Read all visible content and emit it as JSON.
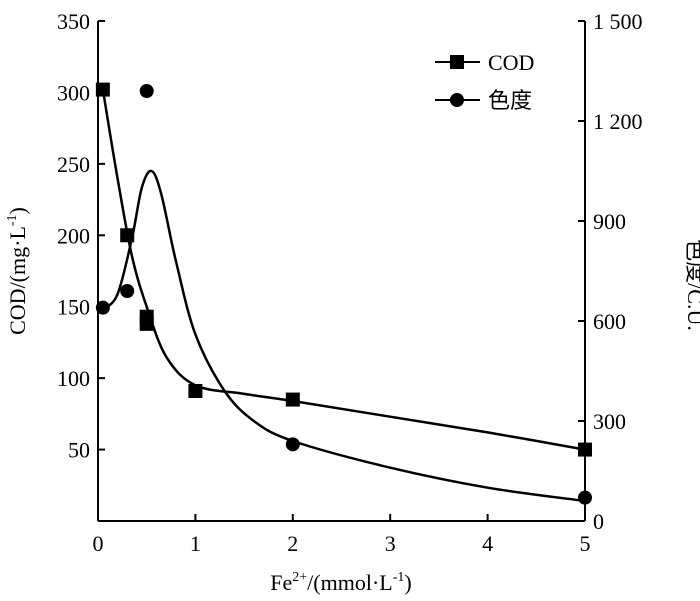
{
  "chart_data": {
    "type": "line",
    "title": "",
    "x_axis": {
      "ticks": [
        0,
        1,
        2,
        3,
        4,
        5
      ],
      "tick_labels": [
        "0",
        "1",
        "2",
        "3",
        "4",
        "5"
      ]
    },
    "y_axis_left": {
      "label": "COD/(mg·L",
      "label_sup": "-1",
      "label_close": ")",
      "range": [
        0,
        350
      ],
      "ticks": [
        50,
        100,
        150,
        200,
        250,
        300,
        350
      ],
      "tick_labels": [
        "50",
        "100",
        "150",
        "200",
        "250",
        "300",
        "350"
      ]
    },
    "y_axis_right": {
      "label": "色度/C.U.",
      "range": [
        0,
        1500
      ],
      "ticks": [
        0,
        300,
        600,
        900,
        1200,
        1500
      ],
      "tick_labels": [
        "0",
        "300",
        "600",
        "900",
        "1 200",
        "1 500"
      ]
    },
    "x_label": {
      "base": "Fe",
      "sup": "2+",
      "mid": "/(mmol·L",
      "sup2": "-1",
      "end": ")"
    },
    "legend_position": "top-right",
    "series": [
      {
        "name": "COD",
        "marker": "square",
        "axis": "left",
        "x": [
          0.05,
          0.3,
          0.5,
          0.5,
          1,
          2,
          5
        ],
        "y": [
          302,
          200,
          143,
          138,
          91,
          85,
          50
        ],
        "curve": [
          [
            0.05,
            302
          ],
          [
            0.2,
            240
          ],
          [
            0.35,
            185
          ],
          [
            0.5,
            150
          ],
          [
            0.7,
            115
          ],
          [
            1.0,
            95
          ],
          [
            1.5,
            89
          ],
          [
            2.0,
            84
          ],
          [
            3.0,
            73
          ],
          [
            4.0,
            62
          ],
          [
            5.0,
            50
          ]
        ]
      },
      {
        "name": "色度",
        "marker": "circle",
        "axis": "right",
        "x": [
          0.05,
          0.3,
          0.5,
          2,
          5
        ],
        "y": [
          640,
          690,
          1290,
          230,
          70
        ],
        "curve": [
          [
            0.05,
            635
          ],
          [
            0.2,
            680
          ],
          [
            0.35,
            850
          ],
          [
            0.45,
            1000
          ],
          [
            0.55,
            1050
          ],
          [
            0.65,
            980
          ],
          [
            0.8,
            780
          ],
          [
            1.0,
            560
          ],
          [
            1.3,
            390
          ],
          [
            1.6,
            300
          ],
          [
            2.0,
            240
          ],
          [
            3.0,
            160
          ],
          [
            4.0,
            100
          ],
          [
            5.0,
            60
          ]
        ]
      }
    ]
  }
}
